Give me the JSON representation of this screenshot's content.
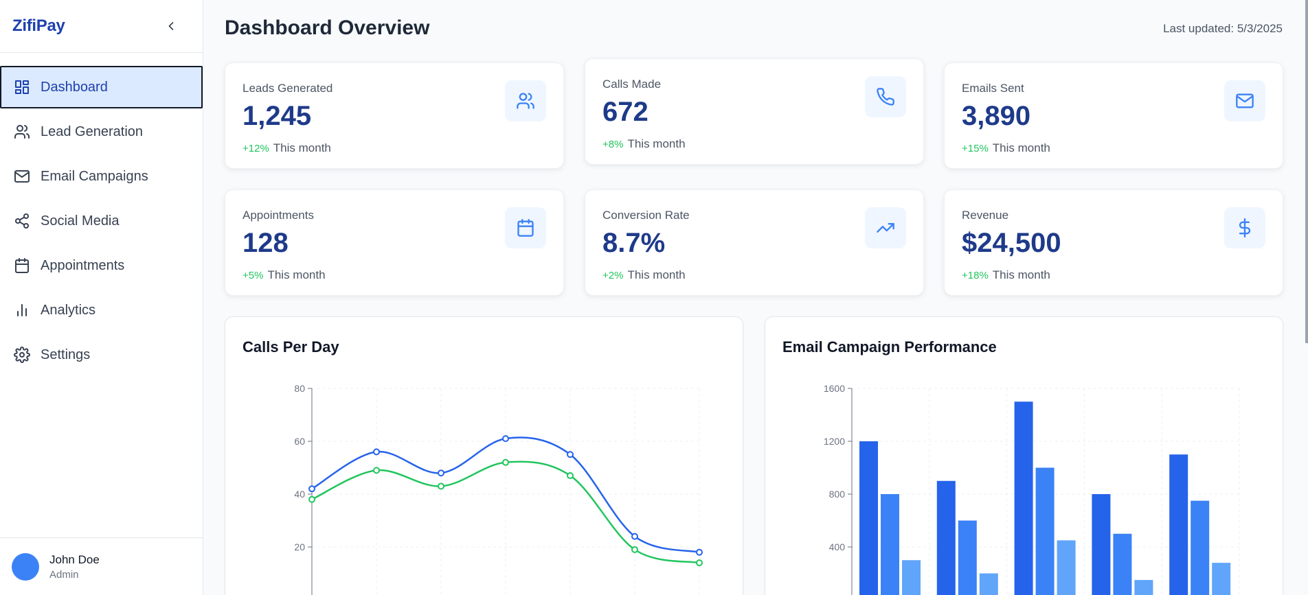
{
  "app": {
    "name": "ZifiPay"
  },
  "sidebar": {
    "items": [
      {
        "label": "Dashboard",
        "icon": "dashboard-icon",
        "active": true
      },
      {
        "label": "Lead Generation",
        "icon": "users-icon"
      },
      {
        "label": "Email Campaigns",
        "icon": "mail-icon"
      },
      {
        "label": "Social Media",
        "icon": "share-icon"
      },
      {
        "label": "Appointments",
        "icon": "calendar-icon"
      },
      {
        "label": "Analytics",
        "icon": "bar-chart-icon"
      },
      {
        "label": "Settings",
        "icon": "gear-icon"
      }
    ]
  },
  "user": {
    "name": "John Doe",
    "role": "Admin"
  },
  "header": {
    "title": "Dashboard Overview",
    "updated": "Last updated: 5/3/2025"
  },
  "stats": [
    {
      "label": "Leads Generated",
      "value": "1,245",
      "delta": "+12%",
      "period": "This month",
      "icon": "users-icon"
    },
    {
      "label": "Calls Made",
      "value": "672",
      "delta": "+8%",
      "period": "This month",
      "icon": "phone-icon"
    },
    {
      "label": "Emails Sent",
      "value": "3,890",
      "delta": "+15%",
      "period": "This month",
      "icon": "mail-icon"
    },
    {
      "label": "Appointments",
      "value": "128",
      "delta": "+5%",
      "period": "This month",
      "icon": "calendar-icon"
    },
    {
      "label": "Conversion Rate",
      "value": "8.7%",
      "delta": "+2%",
      "period": "This month",
      "icon": "trending-up-icon"
    },
    {
      "label": "Revenue",
      "value": "$24,500",
      "delta": "+18%",
      "period": "This month",
      "icon": "dollar-icon"
    }
  ],
  "colors": {
    "accent": "#1e40af",
    "primary": "#2563eb",
    "secondary": "#3b82f6",
    "tertiary": "#60a5fa",
    "positive": "#22c55e"
  },
  "chart_data": [
    {
      "type": "line",
      "title": "Calls Per Day",
      "ylim": [
        0,
        80
      ],
      "yticks": [
        20,
        40,
        60,
        80
      ],
      "series": [
        {
          "values": [
            42,
            56,
            48,
            61,
            55,
            24,
            18
          ],
          "color": "#2563eb"
        },
        {
          "values": [
            38,
            49,
            43,
            52,
            47,
            19,
            14
          ],
          "color": "#22c55e"
        }
      ]
    },
    {
      "type": "bar",
      "title": "Email Campaign Performance",
      "ylim": [
        0,
        1600
      ],
      "yticks": [
        400,
        800,
        1200,
        1600
      ],
      "series": [
        {
          "values": [
            1200,
            900,
            1500,
            800,
            1100
          ],
          "color": "#2563eb"
        },
        {
          "values": [
            800,
            600,
            1000,
            500,
            750
          ],
          "color": "#3b82f6"
        },
        {
          "values": [
            300,
            200,
            450,
            150,
            280
          ],
          "color": "#60a5fa"
        }
      ]
    }
  ]
}
